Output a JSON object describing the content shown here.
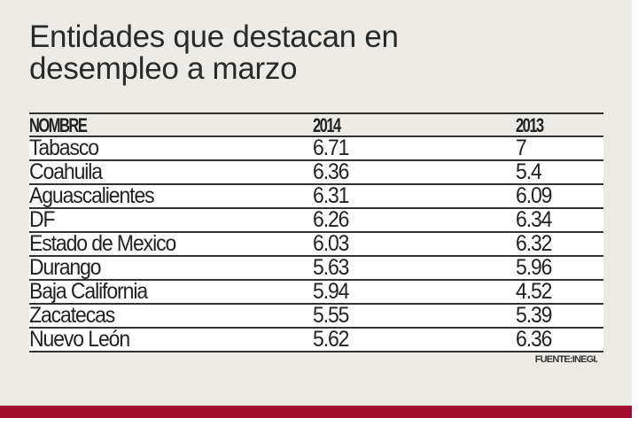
{
  "title_lines": [
    "Entidades que destacan en",
    "desempleo a marzo"
  ],
  "chart_data": {
    "type": "table",
    "title": "Entidades que destacan en desempleo a marzo",
    "columns": [
      "NOMBRE",
      "2014",
      "2013"
    ],
    "rows": [
      [
        "Tabasco",
        "6.71",
        "7"
      ],
      [
        "Coahuila",
        "6.36",
        "5.4"
      ],
      [
        "Aguascalientes",
        "6.31",
        "6.09"
      ],
      [
        "DF",
        "6.26",
        "6.34"
      ],
      [
        "Estado de Mexico",
        "6.03",
        "6.32"
      ],
      [
        "Durango",
        "5.63",
        "5.96"
      ],
      [
        "Baja California",
        "5.94",
        "4.52"
      ],
      [
        "Zacatecas",
        "5.55",
        "5.39"
      ],
      [
        "Nuevo León",
        "5.62",
        "6.36"
      ]
    ],
    "source": "FUENTE:INEGI."
  },
  "colors": {
    "background": "#ecebe5",
    "accent_bar": "#a30d2f"
  }
}
